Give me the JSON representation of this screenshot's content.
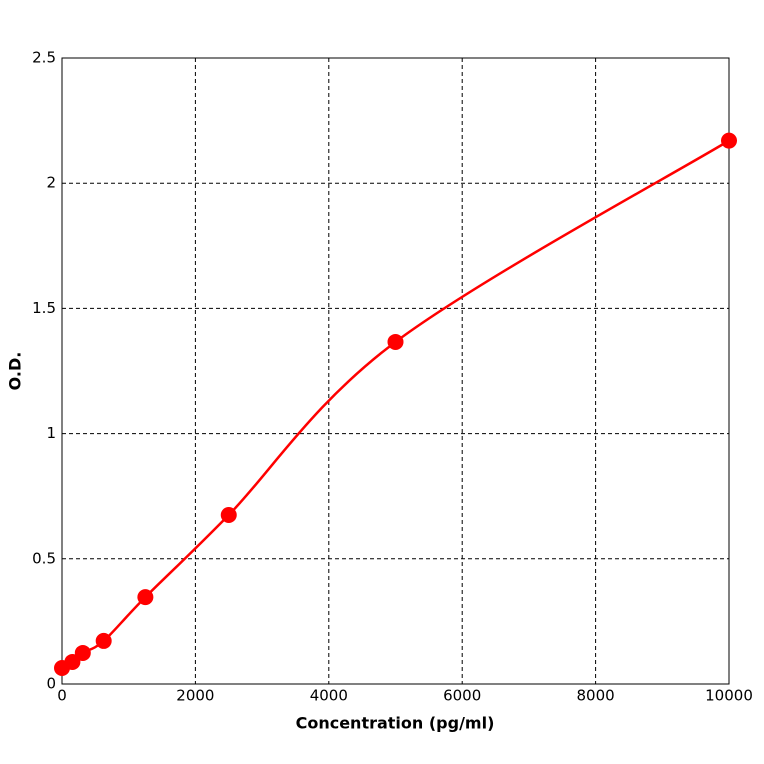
{
  "chart_data": {
    "type": "line",
    "x_label": "Concentration (pg/ml)",
    "y_label": "O.D.",
    "x": [
      0,
      156,
      312,
      625,
      1250,
      2500,
      5000,
      10000
    ],
    "series": [
      {
        "color": "#ff0000",
        "values": [
          0.064,
          0.088,
          0.124,
          0.172,
          0.347,
          0.675,
          1.366,
          2.17
        ]
      }
    ],
    "xlim": [
      0,
      10000
    ],
    "xticks": [
      0,
      2000,
      4000,
      6000,
      8000,
      10000
    ],
    "ylim": [
      0,
      2.5
    ],
    "yticks": [
      0,
      0.5,
      1,
      1.5,
      2,
      2.5
    ],
    "grid": true,
    "markers": true
  }
}
